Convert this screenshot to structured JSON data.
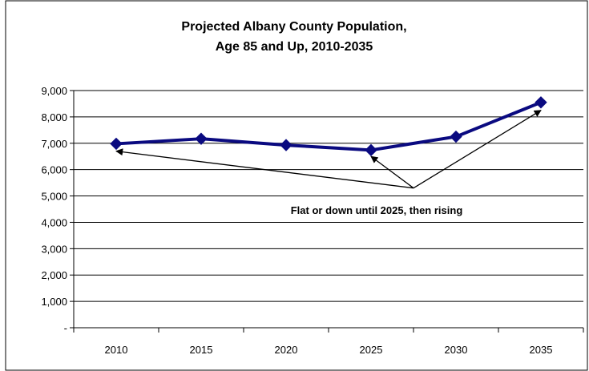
{
  "chart_data": {
    "type": "line",
    "title_lines": [
      "Projected Albany County Population,",
      "Age 85 and Up, 2010-2035"
    ],
    "categories": [
      "2010",
      "2015",
      "2020",
      "2025",
      "2030",
      "2035"
    ],
    "series": [
      {
        "values": [
          6980,
          7170,
          6930,
          6740,
          7250,
          8550
        ]
      }
    ],
    "y_ticks": [
      0,
      1000,
      2000,
      3000,
      4000,
      5000,
      6000,
      7000,
      8000,
      9000
    ],
    "y_tick_labels": [
      "-",
      "1,000",
      "2,000",
      "3,000",
      "4,000",
      "5,000",
      "6,000",
      "7,000",
      "8,000",
      "9,000"
    ],
    "ylim": [
      0,
      9000
    ],
    "grid": true,
    "legend": "none",
    "annotation": {
      "text": "Flat or down until 2025, then rising",
      "anchor": {
        "x": "2027.5",
        "y": 5300
      },
      "arrow_targets": [
        {
          "x": "2010",
          "y": 6700
        },
        {
          "x": "2025",
          "y": 6500
        },
        {
          "x": "2035",
          "y": 8250
        }
      ]
    },
    "colors": {
      "line": "#0a0a80",
      "marker": "#0a0a80",
      "grid": "#000000"
    }
  }
}
